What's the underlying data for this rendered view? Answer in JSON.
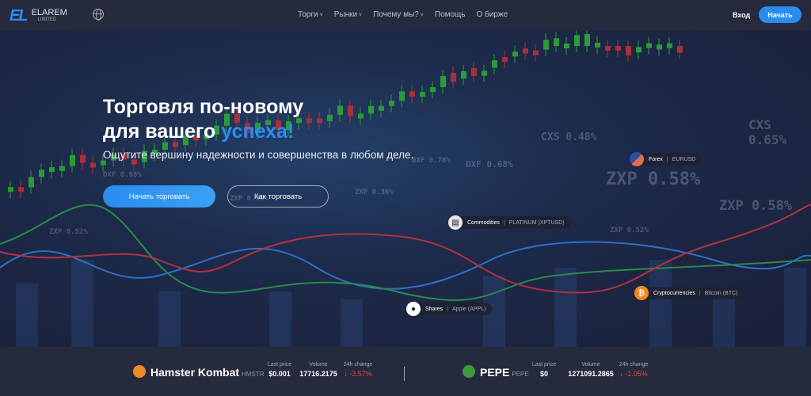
{
  "nav": {
    "logo_mark": "EL",
    "logo_name": "ELAREM",
    "logo_sub": "LIMITED",
    "menu": [
      "Торги",
      "Рынки",
      "Почему мы?",
      "Помощь",
      "О бирже"
    ],
    "login": "Вход",
    "start": "Начать"
  },
  "hero": {
    "title_line1": "Торговля по-новому",
    "title_line2_prefix": "для вашего ",
    "title_accent": "успеха!",
    "subtitle": "Ощутите вершину надежности и совершенства в любом деле.",
    "primary_button": "Начать торговать",
    "secondary_button": "Как торговать",
    "accent_color": "#2a8cf0"
  },
  "background_tickers": [
    "CXS 0.65%",
    "CXS 0.48%",
    "ZXP 0.58%",
    "ZXP 0.58%",
    "DXF 0.68%",
    "DXF 0.78%",
    "ZXP 0.36%",
    "ZXP 0.52%",
    "DXF 0.68%",
    "ZXP 0.52%",
    "ZXP 0.36%"
  ],
  "badges": [
    {
      "category": "Forex",
      "instrument": "EURUSD",
      "icon": "flag-icon"
    },
    {
      "category": "Commodities",
      "instrument": "PLATINUM (XPTUSD)",
      "icon": "platinum-icon"
    },
    {
      "category": "Cryptocurrencies",
      "instrument": "Bitcoin (BTC)",
      "icon": "bitcoin-icon"
    },
    {
      "category": "Shares",
      "instrument": "Apple (APPL)",
      "icon": "apple-icon"
    }
  ],
  "ticker": [
    {
      "name": "Hamster Kombat",
      "symbol": "HMSTR",
      "last_price_label": "Last price",
      "last_price": "$0.001",
      "volume_label": "Volume",
      "volume": "17716.2175",
      "change_label": "24h change",
      "change": "↓ -3.57%"
    },
    {
      "name": "PEPE",
      "symbol": "PEPE",
      "last_price_label": "Last price",
      "last_price": "$0",
      "volume_label": "Volume",
      "volume": "1271091.2865",
      "change_label": "24h change",
      "change": "↓ -1.05%"
    }
  ]
}
